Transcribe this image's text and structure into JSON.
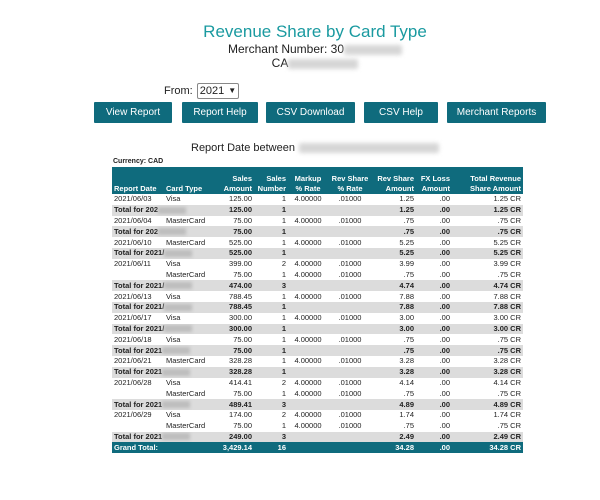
{
  "header": {
    "title": "Revenue Share by Card Type",
    "merchant_label": "Merchant Number: 30",
    "merchant_name_prefix": "CA"
  },
  "filter": {
    "from_label": "From:",
    "year": "2021"
  },
  "buttons": [
    "View Report",
    "Report Help",
    "CSV Download",
    "CSV Help",
    "Merchant Reports"
  ],
  "report_date_label": "Report Date between",
  "currency": "Currency: CAD",
  "table": {
    "columns": [
      {
        "line1": "",
        "line2": "Report Date"
      },
      {
        "line1": "",
        "line2": "Card Type"
      },
      {
        "line1": "Sales",
        "line2": "Amount"
      },
      {
        "line1": "Sales",
        "line2": "Number"
      },
      {
        "line1": "Markup",
        "line2": "% Rate"
      },
      {
        "line1": "Rev Share",
        "line2": "% Rate"
      },
      {
        "line1": "Rev Share",
        "line2": "Amount"
      },
      {
        "line1": "FX Loss",
        "line2": "Amount"
      },
      {
        "line1": "Total Revenue",
        "line2": "Share Amount"
      }
    ],
    "rows": [
      {
        "type": "detail",
        "date": "2021/06/03",
        "card": "Visa",
        "amount": "125.00",
        "number": "1",
        "markup": "4.00000",
        "rev_rate": ".01000",
        "rev_amount": "1.25",
        "fx": ".00",
        "total": "1.25 CR"
      },
      {
        "type": "total",
        "label": "Total for 202",
        "amount": "125.00",
        "number": "1",
        "rev_amount": "1.25",
        "fx": ".00",
        "total": "1.25 CR"
      },
      {
        "type": "detail",
        "date": "2021/06/04",
        "card": "MasterCard",
        "amount": "75.00",
        "number": "1",
        "markup": "4.00000",
        "rev_rate": ".01000",
        "rev_amount": ".75",
        "fx": ".00",
        "total": ".75 CR"
      },
      {
        "type": "total",
        "label": "Total for 202",
        "amount": "75.00",
        "number": "1",
        "rev_amount": ".75",
        "fx": ".00",
        "total": ".75 CR"
      },
      {
        "type": "detail",
        "date": "2021/06/10",
        "card": "MasterCard",
        "amount": "525.00",
        "number": "1",
        "markup": "4.00000",
        "rev_rate": ".01000",
        "rev_amount": "5.25",
        "fx": ".00",
        "total": "5.25 CR"
      },
      {
        "type": "total",
        "label": "Total for 2021/",
        "amount": "525.00",
        "number": "1",
        "rev_amount": "5.25",
        "fx": ".00",
        "total": "5.25 CR"
      },
      {
        "type": "detail",
        "date": "2021/06/11",
        "card": "Visa",
        "amount": "399.00",
        "number": "2",
        "markup": "4.00000",
        "rev_rate": ".01000",
        "rev_amount": "3.99",
        "fx": ".00",
        "total": "3.99 CR"
      },
      {
        "type": "detail",
        "date": "",
        "card": "MasterCard",
        "amount": "75.00",
        "number": "1",
        "markup": "4.00000",
        "rev_rate": ".01000",
        "rev_amount": ".75",
        "fx": ".00",
        "total": ".75 CR"
      },
      {
        "type": "total",
        "label": "Total for 2021/",
        "amount": "474.00",
        "number": "3",
        "rev_amount": "4.74",
        "fx": ".00",
        "total": "4.74 CR"
      },
      {
        "type": "detail",
        "date": "2021/06/13",
        "card": "Visa",
        "amount": "788.45",
        "number": "1",
        "markup": "4.00000",
        "rev_rate": ".01000",
        "rev_amount": "7.88",
        "fx": ".00",
        "total": "7.88 CR"
      },
      {
        "type": "total",
        "label": "Total for 2021/",
        "amount": "788.45",
        "number": "1",
        "rev_amount": "7.88",
        "fx": ".00",
        "total": "7.88 CR"
      },
      {
        "type": "detail",
        "date": "2021/06/17",
        "card": "Visa",
        "amount": "300.00",
        "number": "1",
        "markup": "4.00000",
        "rev_rate": ".01000",
        "rev_amount": "3.00",
        "fx": ".00",
        "total": "3.00 CR"
      },
      {
        "type": "total",
        "label": "Total for 2021/",
        "amount": "300.00",
        "number": "1",
        "rev_amount": "3.00",
        "fx": ".00",
        "total": "3.00 CR"
      },
      {
        "type": "detail",
        "date": "2021/06/18",
        "card": "Visa",
        "amount": "75.00",
        "number": "1",
        "markup": "4.00000",
        "rev_rate": ".01000",
        "rev_amount": ".75",
        "fx": ".00",
        "total": ".75 CR"
      },
      {
        "type": "total",
        "label": "Total for 2021",
        "amount": "75.00",
        "number": "1",
        "rev_amount": ".75",
        "fx": ".00",
        "total": ".75 CR"
      },
      {
        "type": "detail",
        "date": "2021/06/21",
        "card": "MasterCard",
        "amount": "328.28",
        "number": "1",
        "markup": "4.00000",
        "rev_rate": ".01000",
        "rev_amount": "3.28",
        "fx": ".00",
        "total": "3.28 CR"
      },
      {
        "type": "total",
        "label": "Total for 2021",
        "amount": "328.28",
        "number": "1",
        "rev_amount": "3.28",
        "fx": ".00",
        "total": "3.28 CR"
      },
      {
        "type": "detail",
        "date": "2021/06/28",
        "card": "Visa",
        "amount": "414.41",
        "number": "2",
        "markup": "4.00000",
        "rev_rate": ".01000",
        "rev_amount": "4.14",
        "fx": ".00",
        "total": "4.14 CR"
      },
      {
        "type": "detail",
        "date": "",
        "card": "MasterCard",
        "amount": "75.00",
        "number": "1",
        "markup": "4.00000",
        "rev_rate": ".01000",
        "rev_amount": ".75",
        "fx": ".00",
        "total": ".75 CR"
      },
      {
        "type": "total",
        "label": "Total for 2021",
        "amount": "489.41",
        "number": "3",
        "rev_amount": "4.89",
        "fx": ".00",
        "total": "4.89 CR"
      },
      {
        "type": "detail",
        "date": "2021/06/29",
        "card": "Visa",
        "amount": "174.00",
        "number": "2",
        "markup": "4.00000",
        "rev_rate": ".01000",
        "rev_amount": "1.74",
        "fx": ".00",
        "total": "1.74 CR"
      },
      {
        "type": "detail",
        "date": "",
        "card": "MasterCard",
        "amount": "75.00",
        "number": "1",
        "markup": "4.00000",
        "rev_rate": ".01000",
        "rev_amount": ".75",
        "fx": ".00",
        "total": ".75 CR"
      },
      {
        "type": "total",
        "label": "Total for 2021",
        "amount": "249.00",
        "number": "3",
        "rev_amount": "2.49",
        "fx": ".00",
        "total": "2.49 CR"
      }
    ],
    "grand": {
      "label": "Grand Total:",
      "amount": "3,429.14",
      "number": "16",
      "rev_amount": "34.28",
      "fx": ".00",
      "total": "34.28 CR"
    }
  },
  "colors": {
    "accent": "#0f6b7d",
    "title": "#1a9aa0",
    "total_row": "#dcdcdc"
  }
}
